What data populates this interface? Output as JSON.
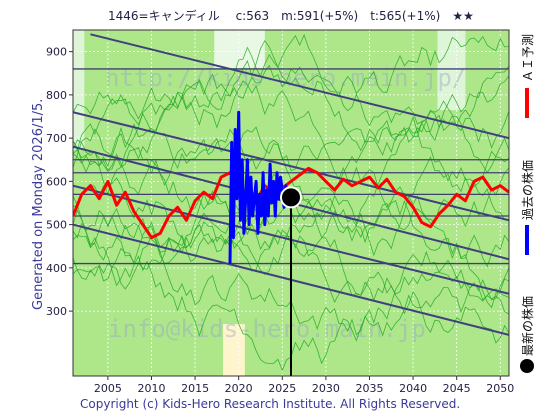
{
  "chart_data": {
    "type": "line",
    "title": "1446=キャンディル　 c:563　m:591(+5%)　t:565(+1%)　★★",
    "side_caption": "Generated on Monday 2026/1/5.",
    "copyright": "Copyright (c) Kids-Hero Research Institute. All Rights Reserved.",
    "watermark_top": "http://kids-hero.main.jp/",
    "watermark_bottom": "info@kids-hero.main.jp",
    "xlim": [
      2001,
      2051
    ],
    "ylim": [
      150,
      950
    ],
    "x_ticks": [
      2005,
      2010,
      2015,
      2020,
      2025,
      2030,
      2035,
      2040,
      2045,
      2050
    ],
    "y_ticks": [
      300,
      400,
      500,
      600,
      700,
      800,
      900
    ],
    "grid": true,
    "legend": [
      {
        "name": "ＡＩ予測",
        "color": "#ff0000"
      },
      {
        "name": "過去の株価",
        "color": "#0000ff"
      },
      {
        "name": "最新の株価",
        "color": "#000000"
      }
    ],
    "latest_point": {
      "x": 2026.0,
      "y": 563
    },
    "current_marker_x": 2026.0,
    "horizontal_levels": [
      410,
      520,
      570,
      620,
      650,
      860
    ],
    "trend_lines": [
      {
        "x": [
          2001,
          2051
        ],
        "y": [
          680,
          420
        ]
      },
      {
        "x": [
          2001,
          2051
        ],
        "y": [
          590,
          340
        ]
      },
      {
        "x": [
          2001,
          2051
        ],
        "y": [
          500,
          245
        ]
      },
      {
        "x": [
          2003,
          2051
        ],
        "y": [
          940,
          700
        ]
      },
      {
        "x": [
          2001,
          2051
        ],
        "y": [
          760,
          510
        ]
      }
    ],
    "past_price": {
      "x": [
        2019.0,
        2019.2,
        2019.4,
        2019.6,
        2019.8,
        2020.0,
        2020.2,
        2020.4,
        2020.6,
        2020.8,
        2021.0,
        2021.2,
        2021.4,
        2021.6,
        2021.8,
        2022.0,
        2022.2,
        2022.4,
        2022.6,
        2022.8,
        2023.0,
        2023.2,
        2023.4,
        2023.6,
        2023.8,
        2024.0,
        2024.2,
        2024.4,
        2024.6,
        2024.8,
        2025.0,
        2025.2,
        2025.4,
        2025.6
      ],
      "y": [
        410,
        690,
        470,
        720,
        560,
        760,
        510,
        650,
        480,
        560,
        650,
        500,
        610,
        520,
        560,
        600,
        480,
        570,
        520,
        620,
        500,
        580,
        520,
        640,
        550,
        600,
        520,
        620,
        560,
        610,
        580,
        540,
        590,
        563
      ]
    },
    "ai_prediction": {
      "x": [
        2001,
        2002,
        2003,
        2004,
        2005,
        2006,
        2007,
        2008,
        2009,
        2010,
        2011,
        2012,
        2013,
        2014,
        2015,
        2016,
        2017,
        2018,
        2019,
        2020,
        2021,
        2022,
        2023,
        2024,
        2025,
        2026,
        2027,
        2028,
        2029,
        2030,
        2031,
        2032,
        2033,
        2034,
        2035,
        2036,
        2037,
        2038,
        2039,
        2040,
        2041,
        2042,
        2043,
        2044,
        2045,
        2046,
        2047,
        2048,
        2049,
        2050,
        2051
      ],
      "y": [
        520,
        570,
        590,
        560,
        600,
        545,
        575,
        530,
        500,
        470,
        480,
        520,
        540,
        510,
        555,
        575,
        560,
        610,
        620,
        600,
        560,
        555,
        590,
        575,
        585,
        600,
        615,
        630,
        620,
        600,
        580,
        605,
        590,
        600,
        610,
        585,
        605,
        575,
        565,
        540,
        505,
        495,
        525,
        545,
        570,
        555,
        600,
        610,
        580,
        590,
        575
      ]
    },
    "simulations_color": "#22aa22"
  }
}
